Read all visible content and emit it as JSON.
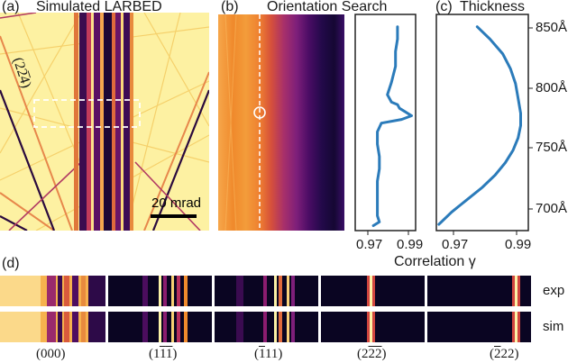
{
  "panels": {
    "a": {
      "label": "(a)",
      "title": "Simulated LARBED",
      "reflection_label": "(22̅4)",
      "scalebar": "20 mrad"
    },
    "b": {
      "label": "(b)",
      "title": "Orientation Search"
    },
    "c": {
      "label": "(c)",
      "title": "Thickness"
    },
    "d": {
      "label": "(d)",
      "row_labels": [
        "exp",
        "sim"
      ],
      "reflections": [
        {
          "pre": "(000)",
          "parts": [
            "(000)"
          ]
        },
        {
          "parts": [
            "(1",
            "1",
            "1",
            ")"
          ],
          "over": [
            false,
            true,
            true,
            false
          ]
        },
        {
          "parts": [
            "(",
            "1",
            "11)"
          ],
          "over": [
            false,
            true,
            false
          ]
        },
        {
          "parts": [
            "(2",
            "2",
            "2",
            ")"
          ],
          "over": [
            false,
            true,
            true,
            false
          ]
        },
        {
          "parts": [
            "(",
            "2",
            "22)"
          ],
          "over": [
            false,
            true,
            false
          ]
        }
      ]
    }
  },
  "thickness_axis": {
    "ticks": [
      "850Å",
      "800Å",
      "750Å",
      "700Å"
    ],
    "values": [
      850,
      800,
      750,
      700
    ]
  },
  "correlation_axis": {
    "title": "Correlation γ",
    "ticks": [
      "0.97",
      "0.99"
    ],
    "values": [
      0.97,
      0.99
    ]
  },
  "colors": {
    "curve": "#2b7bba",
    "bright": "#fcf2a6",
    "dark": "#0a0522",
    "magenta": "#8b1c6f",
    "orange": "#f08a2c"
  },
  "chart_data": [
    {
      "type": "line",
      "panel": "b",
      "xlabel": "Correlation γ",
      "xlim": [
        0.965,
        0.995
      ],
      "ylim": [
        685,
        860
      ],
      "x": [
        0.986,
        0.986,
        0.985,
        0.985,
        0.983,
        0.981,
        0.983,
        0.986,
        0.987,
        0.99,
        0.993,
        0.988,
        0.978,
        0.976,
        0.976,
        0.977,
        0.977,
        0.976,
        0.976,
        0.976,
        0.976,
        0.977,
        0.974
      ],
      "y": [
        850,
        840,
        830,
        818,
        805,
        795,
        789,
        787,
        784,
        781,
        778,
        775,
        772,
        765,
        755,
        745,
        735,
        725,
        715,
        705,
        697,
        692,
        689
      ]
    },
    {
      "type": "line",
      "panel": "c",
      "xlabel": "Correlation γ",
      "xlim": [
        0.962,
        0.998
      ],
      "ylim": [
        685,
        860
      ],
      "x": [
        0.978,
        0.983,
        0.988,
        0.991,
        0.993,
        0.994,
        0.995,
        0.995,
        0.994,
        0.992,
        0.989,
        0.985,
        0.98,
        0.974,
        0.968,
        0.963
      ],
      "y": [
        850,
        840,
        828,
        816,
        804,
        792,
        780,
        770,
        760,
        750,
        740,
        730,
        720,
        710,
        700,
        690
      ]
    }
  ]
}
